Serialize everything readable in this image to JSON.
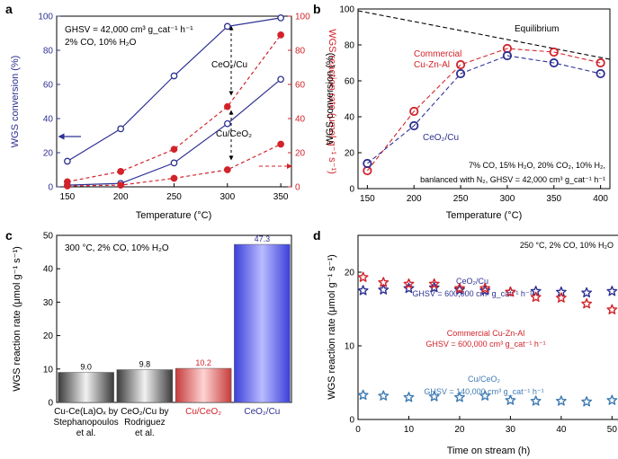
{
  "colors": {
    "blue": "#2e3192",
    "red": "#d2232a",
    "steel": "#3f7bb3",
    "black": "#000000",
    "bar_gray_dark": "#3a3a3a",
    "bar_gray_light": "#f2f2f2",
    "bar_red_dark": "#c63b3b",
    "bar_red_light": "#ffd3d3",
    "bar_blue_dark": "#3b3fd9",
    "bar_blue_light": "#b9bcff"
  },
  "chart_data": [
    {
      "panel": "a",
      "type": "line",
      "title": "",
      "xlabel": "Temperature (°C)",
      "ylabel": "WGS conversion (%)",
      "ylabel_right": "WGS reaction rate (μmol g⁻¹ s⁻¹)",
      "xlim": [
        140,
        360
      ],
      "ylim": [
        0,
        100
      ],
      "ylim_right": [
        0,
        100
      ],
      "xticks": [
        150,
        200,
        250,
        300,
        350
      ],
      "yticks": [
        0,
        20,
        40,
        60,
        80,
        100
      ],
      "yticks_right": [
        0,
        20,
        40,
        60,
        80,
        100
      ],
      "annotation_lines": [
        "GHSV = 42,000 cm³ g_cat⁻¹ h⁻¹",
        "2% CO, 10% H₂O"
      ],
      "annotation_labels": [
        "CeO₂/Cu",
        "Cu/CeO₂"
      ],
      "series": [
        {
          "name": "CeO₂/Cu conversion",
          "axis": "left",
          "style": "solid-open-circle",
          "color_key": "blue",
          "x": [
            150,
            200,
            250,
            300,
            350
          ],
          "values": [
            15,
            34,
            65,
            94,
            99
          ]
        },
        {
          "name": "Cu/CeO₂ conversion",
          "axis": "left",
          "style": "solid-open-circle",
          "color_key": "blue",
          "x": [
            150,
            200,
            250,
            300,
            350
          ],
          "values": [
            1,
            2,
            14,
            37,
            63
          ]
        },
        {
          "name": "CeO₂/Cu rate",
          "axis": "right",
          "style": "dashed-filled-circle",
          "color_key": "red",
          "x": [
            150,
            200,
            250,
            300,
            350
          ],
          "values": [
            3,
            9,
            22,
            47,
            89
          ]
        },
        {
          "name": "Cu/CeO₂ rate",
          "axis": "right",
          "style": "dashed-filled-circle",
          "color_key": "red",
          "x": [
            150,
            200,
            250,
            300,
            350
          ],
          "values": [
            0.5,
            1,
            5,
            10,
            25
          ]
        }
      ]
    },
    {
      "panel": "b",
      "type": "line",
      "title": "",
      "xlabel": "Temperature (°C)",
      "ylabel": "WGS conversion (%)",
      "xlim": [
        140,
        410
      ],
      "ylim": [
        0,
        100
      ],
      "xticks": [
        150,
        200,
        250,
        300,
        350,
        400
      ],
      "yticks": [
        0,
        20,
        40,
        60,
        80,
        100
      ],
      "equilibrium_label": "Equilibrium",
      "annotation_lines": [
        "7% CO, 15% H₂O, 20% CO₂, 10% H₂,",
        "banlanced with N₂, GHSV = 42,000 cm³ g_cat⁻¹ h⁻¹"
      ],
      "series": [
        {
          "name": "Equilibrium",
          "style": "dashed",
          "color_key": "black",
          "x": [
            140,
            410
          ],
          "values": [
            99,
            72
          ]
        },
        {
          "name": "Commercial Cu-Zn-Al",
          "label_lines": [
            "Commercial",
            "Cu-Zn-Al"
          ],
          "style": "dashed-open-circle",
          "color_key": "red",
          "x": [
            150,
            200,
            250,
            300,
            350,
            400
          ],
          "values": [
            10,
            43,
            69,
            78,
            76,
            70
          ]
        },
        {
          "name": "CeO₂/Cu",
          "label_lines": [
            "CeO₂/Cu"
          ],
          "style": "dashed-open-circle",
          "color_key": "blue",
          "x": [
            150,
            200,
            250,
            300,
            350,
            400
          ],
          "values": [
            14,
            35,
            64,
            74,
            70,
            64
          ]
        }
      ]
    },
    {
      "panel": "c",
      "type": "bar",
      "title": "",
      "xlabel": "",
      "ylabel": "WGS reaction rate (μmol g⁻¹ s⁻¹)",
      "ylim": [
        0,
        50
      ],
      "yticks": [
        0,
        10,
        20,
        30,
        40,
        50
      ],
      "annotation": "300 °C, 2% CO, 10% H₂O",
      "bars": [
        {
          "label_lines": [
            "Cu-Ce(La)Oₓ by",
            "Stephanopoulos",
            "et al."
          ],
          "value": 9.0,
          "value_label": "9.0",
          "fill": "gray",
          "label_color_key": "black"
        },
        {
          "label_lines": [
            "CeO₂/Cu by",
            "Rodriguez",
            "et al."
          ],
          "value": 9.8,
          "value_label": "9.8",
          "fill": "gray",
          "label_color_key": "black"
        },
        {
          "label_lines": [
            "Cu/CeO₂"
          ],
          "value": 10.2,
          "value_label": "10.2",
          "fill": "red",
          "label_color_key": "red"
        },
        {
          "label_lines": [
            "CeO₂/Cu"
          ],
          "value": 47.3,
          "value_label": "47.3",
          "fill": "blue",
          "label_color_key": "blue"
        }
      ]
    },
    {
      "panel": "d",
      "type": "scatter",
      "title": "",
      "xlabel": "Time on stream (h)",
      "ylabel": "WGS reaction rate (μmol g⁻¹ s⁻¹)",
      "xlim": [
        0,
        51
      ],
      "ylim": [
        0,
        25
      ],
      "xticks": [
        0,
        10,
        20,
        30,
        40,
        50
      ],
      "yticks": [
        0,
        10,
        20
      ],
      "annotation": "250 °C, 2% CO, 10% H₂O",
      "series": [
        {
          "name": "CeO₂/Cu",
          "label_lines": [
            "CeO₂/Cu",
            "GHSV = 600,000 cm³ g_cat⁻¹ h⁻¹"
          ],
          "marker": "star",
          "color_key": "blue",
          "x": [
            1,
            5,
            10,
            15,
            20,
            25,
            30,
            35,
            40,
            45,
            50
          ],
          "values": [
            17.5,
            17.6,
            17.8,
            17.9,
            17.6,
            17.5,
            17.3,
            17.4,
            17.3,
            17.2,
            17.4
          ]
        },
        {
          "name": "Commercial Cu-Zn-Al",
          "label_lines": [
            "Commercial Cu-Zn-Al",
            "GHSV = 600,000 cm³ g_cat⁻¹ h⁻¹"
          ],
          "marker": "star",
          "color_key": "red",
          "x": [
            1,
            5,
            10,
            15,
            20,
            25,
            30,
            35,
            40,
            45,
            50
          ],
          "values": [
            19.3,
            18.6,
            18.4,
            18.4,
            17.8,
            17.8,
            17.3,
            16.6,
            16.5,
            15.7,
            14.9
          ]
        },
        {
          "name": "Cu/CeO₂",
          "label_lines": [
            "Cu/CeO₂",
            "GHSV = 140,000 cm³ g_cat⁻¹ h⁻¹"
          ],
          "marker": "star",
          "color_key": "steel",
          "x": [
            1,
            5,
            10,
            15,
            20,
            25,
            30,
            35,
            40,
            45,
            50
          ],
          "values": [
            3.3,
            3.2,
            3.0,
            3.1,
            3.0,
            3.2,
            2.6,
            2.5,
            2.5,
            2.4,
            2.6
          ]
        }
      ]
    }
  ],
  "panel_letters": [
    "a",
    "b",
    "c",
    "d"
  ]
}
